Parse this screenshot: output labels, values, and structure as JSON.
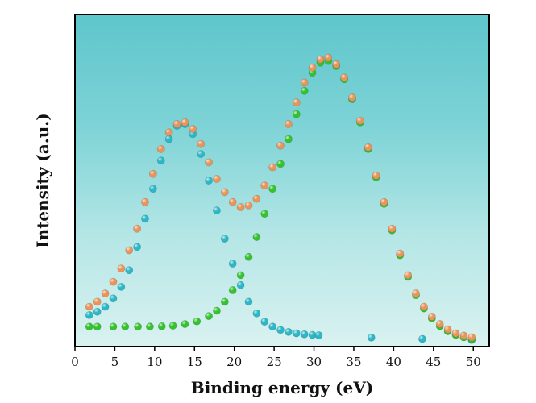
{
  "chart_data": {
    "type": "scatter",
    "title": "",
    "xlabel": "Binding energy (eV)",
    "ylabel": "Intensity  (a.u.)",
    "xlim": [
      0,
      52
    ],
    "ylim": [
      0,
      100
    ],
    "y_ticks_shown": false,
    "grid": false,
    "x_ticks": [
      0,
      5,
      10,
      15,
      20,
      25,
      30,
      35,
      40,
      45,
      50
    ],
    "x_tick_labels": [
      "0",
      "5",
      "10",
      "15",
      "20",
      "25",
      "30",
      "35",
      "40",
      "45",
      "50"
    ],
    "background": {
      "style": "vertical-gradient",
      "colors": [
        "#5ec6cc",
        "#7dd3d6",
        "#b5e6e6",
        "#d9f2f0"
      ]
    },
    "series": [
      {
        "color": "#2bb7c7",
        "points": [
          [
            1.8,
            9.5
          ],
          [
            2.8,
            10.5
          ],
          [
            3.8,
            12.0
          ],
          [
            4.8,
            14.5
          ],
          [
            5.8,
            18.0
          ],
          [
            6.8,
            23.0
          ],
          [
            7.8,
            30.0
          ],
          [
            8.8,
            38.5
          ],
          [
            9.8,
            47.5
          ],
          [
            10.8,
            56.0
          ],
          [
            11.8,
            62.5
          ],
          [
            12.8,
            66.5
          ],
          [
            13.8,
            67.0
          ],
          [
            14.8,
            64.0
          ],
          [
            15.8,
            58.0
          ],
          [
            16.8,
            50.0
          ],
          [
            17.8,
            41.0
          ],
          [
            18.8,
            32.5
          ],
          [
            19.8,
            25.0
          ],
          [
            20.8,
            18.5
          ],
          [
            21.8,
            13.5
          ],
          [
            22.8,
            10.0
          ],
          [
            23.8,
            7.5
          ],
          [
            24.8,
            6.0
          ],
          [
            25.8,
            5.0
          ],
          [
            26.8,
            4.4
          ],
          [
            27.8,
            4.0
          ],
          [
            28.8,
            3.7
          ],
          [
            29.8,
            3.5
          ],
          [
            30.6,
            3.4
          ],
          [
            37.2,
            2.7
          ],
          [
            43.6,
            2.3
          ],
          [
            49.8,
            2.0
          ]
        ]
      },
      {
        "color": "#35c22f",
        "points": [
          [
            1.8,
            6.0
          ],
          [
            2.8,
            6.0
          ],
          [
            4.8,
            6.0
          ],
          [
            6.3,
            6.0
          ],
          [
            7.9,
            6.0
          ],
          [
            9.4,
            6.0
          ],
          [
            10.9,
            6.1
          ],
          [
            12.3,
            6.3
          ],
          [
            13.8,
            6.8
          ],
          [
            15.3,
            7.6
          ],
          [
            16.8,
            9.2
          ],
          [
            17.8,
            10.8
          ],
          [
            18.8,
            13.5
          ],
          [
            19.8,
            17.0
          ],
          [
            20.8,
            21.5
          ],
          [
            21.8,
            27.0
          ],
          [
            22.8,
            33.0
          ],
          [
            23.8,
            40.0
          ],
          [
            24.8,
            47.5
          ],
          [
            25.8,
            55.0
          ],
          [
            26.8,
            62.5
          ],
          [
            27.8,
            70.0
          ],
          [
            28.8,
            77.0
          ],
          [
            29.8,
            82.5
          ],
          [
            30.8,
            85.5
          ],
          [
            31.8,
            86.0
          ],
          [
            32.8,
            84.5
          ],
          [
            33.8,
            80.5
          ],
          [
            34.8,
            74.5
          ],
          [
            35.8,
            67.5
          ],
          [
            36.8,
            59.5
          ],
          [
            37.8,
            51.0
          ],
          [
            38.8,
            43.0
          ],
          [
            39.8,
            35.0
          ],
          [
            40.8,
            27.5
          ],
          [
            41.8,
            21.0
          ],
          [
            42.8,
            15.5
          ],
          [
            43.8,
            11.5
          ],
          [
            44.8,
            8.5
          ],
          [
            45.8,
            6.2
          ],
          [
            46.8,
            4.6
          ],
          [
            47.8,
            3.5
          ],
          [
            48.8,
            2.8
          ],
          [
            49.8,
            2.3
          ]
        ]
      },
      {
        "color": "#e8945a",
        "points": [
          [
            1.8,
            12.0
          ],
          [
            2.8,
            13.5
          ],
          [
            3.8,
            16.0
          ],
          [
            4.8,
            19.5
          ],
          [
            5.8,
            23.5
          ],
          [
            6.8,
            29.0
          ],
          [
            7.8,
            35.5
          ],
          [
            8.8,
            43.5
          ],
          [
            9.8,
            52.0
          ],
          [
            10.8,
            59.5
          ],
          [
            11.8,
            64.5
          ],
          [
            12.8,
            67.0
          ],
          [
            13.8,
            67.5
          ],
          [
            14.8,
            65.5
          ],
          [
            15.8,
            61.0
          ],
          [
            16.8,
            55.5
          ],
          [
            17.8,
            50.5
          ],
          [
            18.8,
            46.5
          ],
          [
            19.8,
            43.5
          ],
          [
            20.8,
            42.0
          ],
          [
            21.8,
            42.5
          ],
          [
            22.8,
            44.5
          ],
          [
            23.8,
            48.5
          ],
          [
            24.8,
            54.0
          ],
          [
            25.8,
            60.5
          ],
          [
            26.8,
            67.0
          ],
          [
            27.8,
            73.5
          ],
          [
            28.8,
            79.5
          ],
          [
            29.8,
            84.0
          ],
          [
            30.8,
            86.5
          ],
          [
            31.8,
            87.0
          ],
          [
            32.8,
            85.0
          ],
          [
            33.8,
            81.0
          ],
          [
            34.8,
            75.0
          ],
          [
            35.8,
            68.0
          ],
          [
            36.8,
            60.0
          ],
          [
            37.8,
            51.5
          ],
          [
            38.8,
            43.5
          ],
          [
            39.8,
            35.5
          ],
          [
            40.8,
            28.0
          ],
          [
            41.8,
            21.5
          ],
          [
            42.8,
            16.0
          ],
          [
            43.8,
            12.0
          ],
          [
            44.8,
            9.0
          ],
          [
            45.8,
            6.8
          ],
          [
            46.8,
            5.2
          ],
          [
            47.8,
            4.0
          ],
          [
            48.8,
            3.3
          ],
          [
            49.8,
            2.8
          ]
        ]
      }
    ]
  }
}
